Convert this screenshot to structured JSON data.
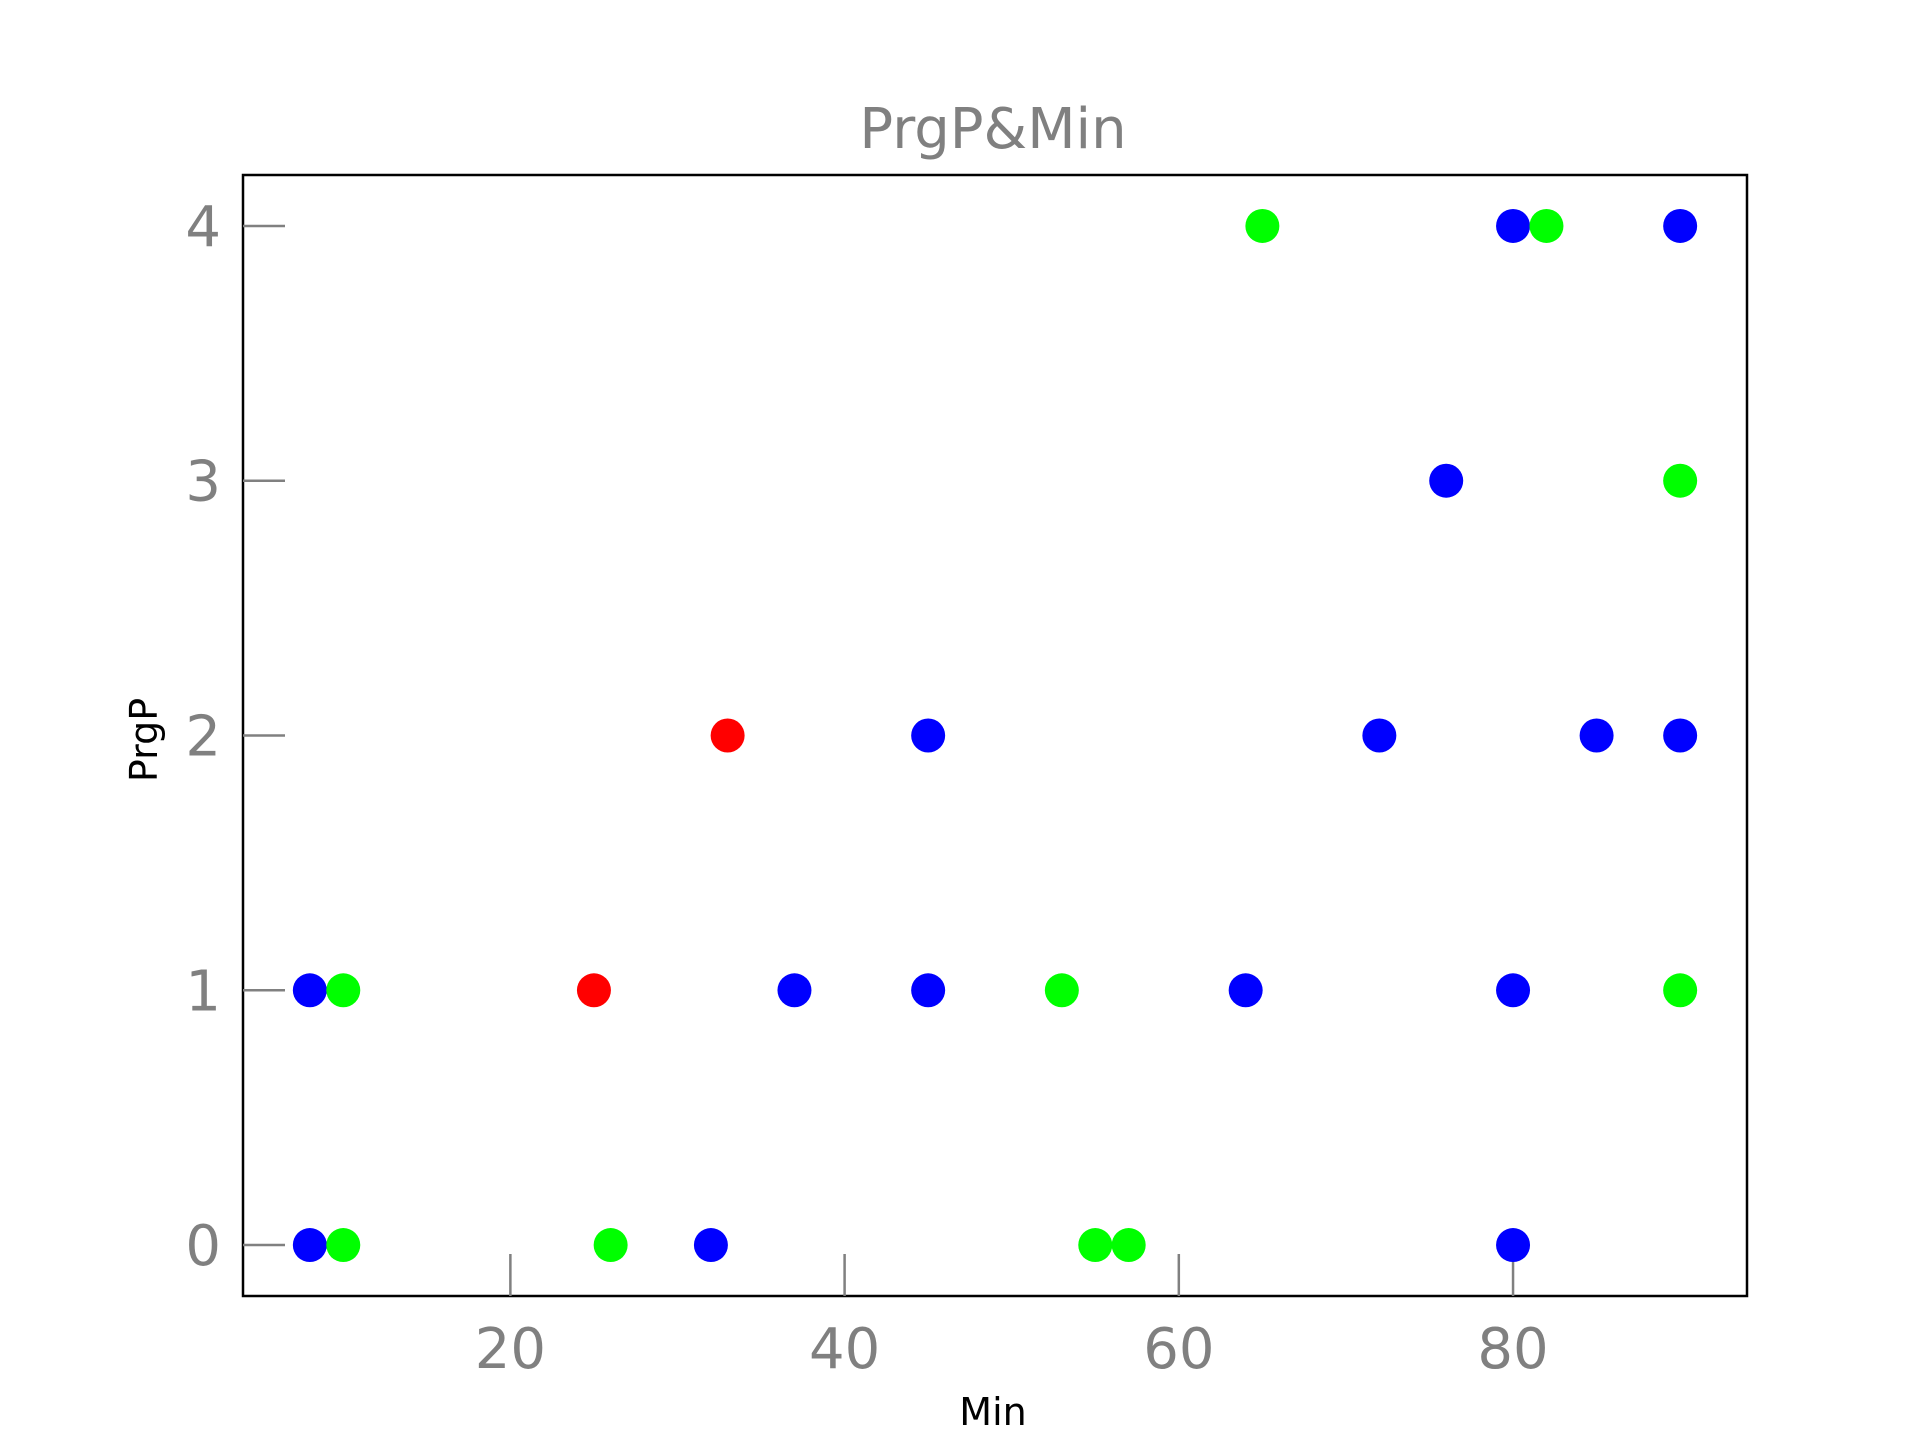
{
  "chart_data": {
    "type": "scatter",
    "title": "PrgP&Min",
    "xlabel": "Min",
    "ylabel": "PrgP",
    "xlim": [
      4,
      94
    ],
    "ylim": [
      -0.2,
      4.2
    ],
    "xticks": [
      20,
      40,
      60,
      80
    ],
    "yticks": [
      0,
      1,
      2,
      3,
      4
    ],
    "grid": false,
    "points": [
      {
        "x": 8,
        "y": 1,
        "color": "#0000ff"
      },
      {
        "x": 10,
        "y": 1,
        "color": "#00ff00"
      },
      {
        "x": 25,
        "y": 1,
        "color": "#ff0000"
      },
      {
        "x": 37,
        "y": 1,
        "color": "#0000ff"
      },
      {
        "x": 45,
        "y": 1,
        "color": "#0000ff"
      },
      {
        "x": 53,
        "y": 1,
        "color": "#00ff00"
      },
      {
        "x": 64,
        "y": 1,
        "color": "#0000ff"
      },
      {
        "x": 80,
        "y": 1,
        "color": "#0000ff"
      },
      {
        "x": 90,
        "y": 1,
        "color": "#00ff00"
      },
      {
        "x": 8,
        "y": 0,
        "color": "#0000ff"
      },
      {
        "x": 10,
        "y": 0,
        "color": "#00ff00"
      },
      {
        "x": 26,
        "y": 0,
        "color": "#00ff00"
      },
      {
        "x": 32,
        "y": 0,
        "color": "#0000ff"
      },
      {
        "x": 55,
        "y": 0,
        "color": "#00ff00"
      },
      {
        "x": 57,
        "y": 0,
        "color": "#00ff00"
      },
      {
        "x": 80,
        "y": 0,
        "color": "#0000ff"
      },
      {
        "x": 33,
        "y": 2,
        "color": "#ff0000"
      },
      {
        "x": 45,
        "y": 2,
        "color": "#0000ff"
      },
      {
        "x": 72,
        "y": 2,
        "color": "#0000ff"
      },
      {
        "x": 85,
        "y": 2,
        "color": "#0000ff"
      },
      {
        "x": 90,
        "y": 2,
        "color": "#0000ff"
      },
      {
        "x": 76,
        "y": 3,
        "color": "#0000ff"
      },
      {
        "x": 90,
        "y": 3,
        "color": "#00ff00"
      },
      {
        "x": 65,
        "y": 4,
        "color": "#00ff00"
      },
      {
        "x": 80,
        "y": 4,
        "color": "#0000ff"
      },
      {
        "x": 82,
        "y": 4,
        "color": "#00ff00"
      },
      {
        "x": 90,
        "y": 4,
        "color": "#0000ff"
      }
    ]
  }
}
